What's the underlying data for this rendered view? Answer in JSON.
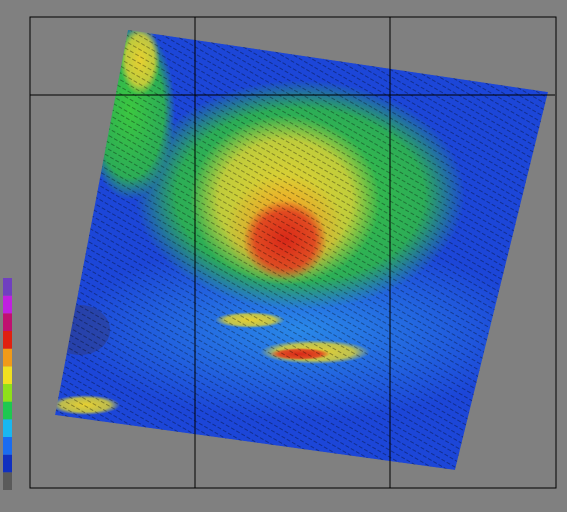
{
  "colorbar": {
    "colors": [
      "#5a5a5a",
      "#1030c0",
      "#1a6cf0",
      "#19b7f0",
      "#1ec850",
      "#8ee01a",
      "#f0e020",
      "#f09a18",
      "#e02010",
      "#c01070",
      "#c020e0",
      "#7040c0"
    ]
  }
}
